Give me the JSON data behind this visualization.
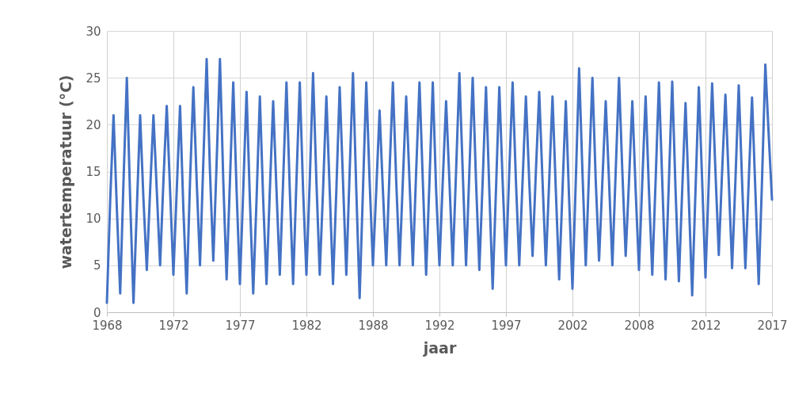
{
  "chart_data": {
    "type": "line",
    "xlabel": "jaar",
    "ylabel": "watertemperatuur (°C)",
    "categories": [
      "1968",
      null,
      null,
      null,
      null,
      null,
      null,
      null,
      null,
      null,
      null,
      null,
      null,
      null,
      null,
      null,
      null,
      null,
      null,
      null,
      "1972",
      null,
      null,
      null,
      null,
      null,
      null,
      null,
      null,
      null,
      null,
      null,
      null,
      null,
      null,
      null,
      null,
      null,
      null,
      null,
      "1977",
      null,
      null,
      null,
      null,
      null,
      null,
      null,
      null,
      null,
      null,
      null,
      null,
      null,
      null,
      null,
      null,
      null,
      null,
      null,
      "1982",
      null,
      null,
      null,
      null,
      null,
      null,
      null,
      null,
      null,
      null,
      null,
      null,
      null,
      null,
      null,
      null,
      null,
      null,
      null,
      "1988",
      null,
      null,
      null,
      null,
      null,
      null,
      null,
      null,
      null,
      null,
      null,
      null,
      null,
      null,
      null,
      null,
      null,
      null,
      null,
      "1992",
      null,
      null,
      null,
      null,
      null,
      null,
      null,
      null,
      null,
      null,
      null,
      null,
      null,
      null,
      null,
      null,
      null,
      null,
      null,
      "1997",
      null,
      null,
      null,
      null,
      null,
      null,
      null,
      null,
      null,
      null,
      null,
      null,
      null,
      null,
      null,
      null,
      null,
      null,
      null,
      "2002",
      null,
      null,
      null,
      null,
      null,
      null,
      null,
      null,
      null,
      null,
      null,
      null,
      null,
      null,
      null,
      null,
      null,
      null,
      null,
      "2008",
      null,
      null,
      null,
      null,
      null,
      null,
      null,
      null,
      null,
      null,
      null,
      null,
      null,
      null,
      null,
      null,
      null,
      null,
      null,
      "2012",
      null,
      null,
      null,
      null,
      null,
      null,
      null,
      null,
      null,
      null,
      null,
      null,
      null,
      null,
      null,
      null,
      null,
      null,
      null,
      "2017"
    ],
    "series": [
      {
        "color": "#4472c4",
        "values": [
          1,
          12,
          21,
          11,
          2,
          14,
          25,
          12,
          1,
          11,
          21,
          12,
          4.5,
          13,
          21,
          13,
          5,
          14,
          22,
          13,
          4,
          13,
          22,
          11,
          2,
          14,
          24,
          14,
          5,
          16,
          27,
          15,
          5.5,
          16,
          27,
          14,
          3.5,
          14,
          24.5,
          13,
          3,
          13,
          23.5,
          12,
          2,
          12,
          23,
          12,
          3,
          13,
          22.5,
          13,
          4,
          14,
          24.5,
          13,
          3,
          14,
          24.5,
          13,
          4,
          14,
          25.5,
          14,
          4,
          13,
          23,
          13,
          3,
          13,
          24,
          14,
          4,
          15,
          25.5,
          13,
          1.5,
          13,
          24.5,
          14,
          5,
          13,
          21.5,
          13,
          5,
          15,
          24.5,
          14,
          5,
          14,
          23,
          14,
          5,
          15,
          24.5,
          14,
          4,
          14,
          24.5,
          13,
          5,
          14,
          22.5,
          14,
          5,
          15,
          25.5,
          15,
          5,
          15,
          25,
          14,
          4.5,
          14,
          24,
          13,
          2.5,
          13,
          24,
          14,
          5,
          15,
          24.5,
          14,
          5,
          14,
          23,
          14,
          6,
          15,
          23.5,
          14,
          5,
          14,
          23,
          13,
          3.5,
          13,
          22.5,
          12,
          2.5,
          14,
          26,
          15,
          5,
          15,
          25,
          14,
          5.5,
          14,
          22.5,
          14,
          5,
          15,
          25,
          15,
          6,
          14,
          22.5,
          13,
          4.5,
          14,
          23,
          13,
          4,
          14,
          24.5,
          14,
          3.5,
          14,
          24.6,
          13,
          3.3,
          13,
          22.3,
          12,
          1.8,
          13,
          24,
          14,
          3.7,
          14,
          24.4,
          15,
          6.1,
          15,
          23.2,
          14,
          4.7,
          14,
          24.2,
          14,
          4.7,
          14,
          22.9,
          13,
          3,
          14,
          26.4,
          19,
          12
        ]
      }
    ],
    "ylim": [
      0,
      30
    ],
    "yticks": [
      0,
      5,
      10,
      15,
      20,
      25,
      30
    ],
    "grid": true,
    "line_style": "solid",
    "marker": "none"
  }
}
